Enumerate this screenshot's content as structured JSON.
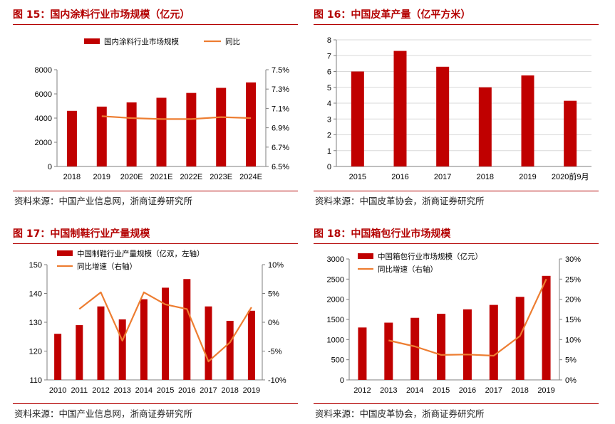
{
  "colors": {
    "bar": "#c00000",
    "line": "#ed7d31",
    "title": "#b30000",
    "axis": "#7f7f7f"
  },
  "panels": [
    {
      "title": "图 15：国内涂料行业市场规模（亿元）",
      "source": "资料来源：中国产业信息网，浙商证券研究所"
    },
    {
      "title": "图 16：中国皮革产量（亿平方米）",
      "source": "资料来源：中国皮革协会，浙商证券研究所"
    },
    {
      "title": "图 17：中国制鞋行业产量规模",
      "source": "资料来源：中国产业信息网，浙商证券研究所"
    },
    {
      "title": "图 18：中国箱包行业市场规模",
      "source": "资料来源：中国皮革协会，浙商证券研究所"
    }
  ],
  "chart_data": [
    {
      "type": "bar",
      "categories": [
        "2018",
        "2019",
        "2020E",
        "2021E",
        "2022E",
        "2023E",
        "2024E"
      ],
      "series": [
        {
          "name": "国内涂料行业市场规模",
          "type": "bar",
          "axis": "left",
          "values": [
            4600,
            4950,
            5300,
            5680,
            6080,
            6500,
            6950
          ]
        },
        {
          "name": "同比",
          "type": "line",
          "axis": "right",
          "values": [
            null,
            7.02,
            7.0,
            6.99,
            6.99,
            7.01,
            7.0
          ]
        }
      ],
      "ylim": [
        0,
        8000
      ],
      "yticks": [
        "0",
        "2000",
        "4000",
        "6000",
        "8000"
      ],
      "y2lim": [
        6.5,
        7.5
      ],
      "y2ticks": [
        "6.5%",
        "6.7%",
        "6.9%",
        "7.1%",
        "7.3%",
        "7.5%"
      ],
      "legend": "top"
    },
    {
      "type": "bar",
      "categories": [
        "2015",
        "2016",
        "2017",
        "2018",
        "2019",
        "2020前9月"
      ],
      "series": [
        {
          "type": "bar",
          "axis": "left",
          "values": [
            6.0,
            7.3,
            6.3,
            5.0,
            5.75,
            4.15
          ]
        }
      ],
      "ylim": [
        0,
        8
      ],
      "yticks": [
        "0",
        "1",
        "2",
        "3",
        "4",
        "5",
        "6",
        "7",
        "8"
      ],
      "grid": true
    },
    {
      "type": "bar",
      "categories": [
        "2010",
        "2011",
        "2012",
        "2013",
        "2014",
        "2015",
        "2016",
        "2017",
        "2018",
        "2019"
      ],
      "series": [
        {
          "name": "中国制鞋行业产量规模（亿双，左轴）",
          "type": "bar",
          "axis": "left",
          "values": [
            126,
            129,
            135.5,
            131,
            138,
            142,
            145,
            135.5,
            130.5,
            134
          ]
        },
        {
          "name": "同比增速（右轴）",
          "type": "line",
          "axis": "right",
          "values": [
            null,
            2.3,
            5.2,
            -3.2,
            5.2,
            3.1,
            2.3,
            -6.8,
            -3.5,
            2.6
          ]
        }
      ],
      "ylim": [
        110,
        150
      ],
      "yticks": [
        "110",
        "120",
        "130",
        "140",
        "150"
      ],
      "y2lim": [
        -10,
        10
      ],
      "y2ticks": [
        "-10%",
        "-5%",
        "0%",
        "5%",
        "10%"
      ],
      "legend": "top-left"
    },
    {
      "type": "bar",
      "categories": [
        "2012",
        "2013",
        "2014",
        "2015",
        "2016",
        "2017",
        "2018",
        "2019"
      ],
      "series": [
        {
          "name": "中国箱包行业市场规模（亿元）",
          "type": "bar",
          "axis": "left",
          "values": [
            1300,
            1420,
            1540,
            1640,
            1750,
            1860,
            2060,
            2580
          ]
        },
        {
          "name": "同比增速（右轴）",
          "type": "line",
          "axis": "right",
          "values": [
            null,
            9.8,
            8.3,
            6.2,
            6.3,
            6.0,
            10.9,
            25.0
          ]
        }
      ],
      "ylim": [
        0,
        3000
      ],
      "yticks": [
        "0",
        "500",
        "1000",
        "1500",
        "2000",
        "2500",
        "3000"
      ],
      "y2lim": [
        0,
        30
      ],
      "y2ticks": [
        "0%",
        "5%",
        "10%",
        "15%",
        "20%",
        "25%",
        "30%"
      ],
      "legend": "top-left"
    }
  ]
}
